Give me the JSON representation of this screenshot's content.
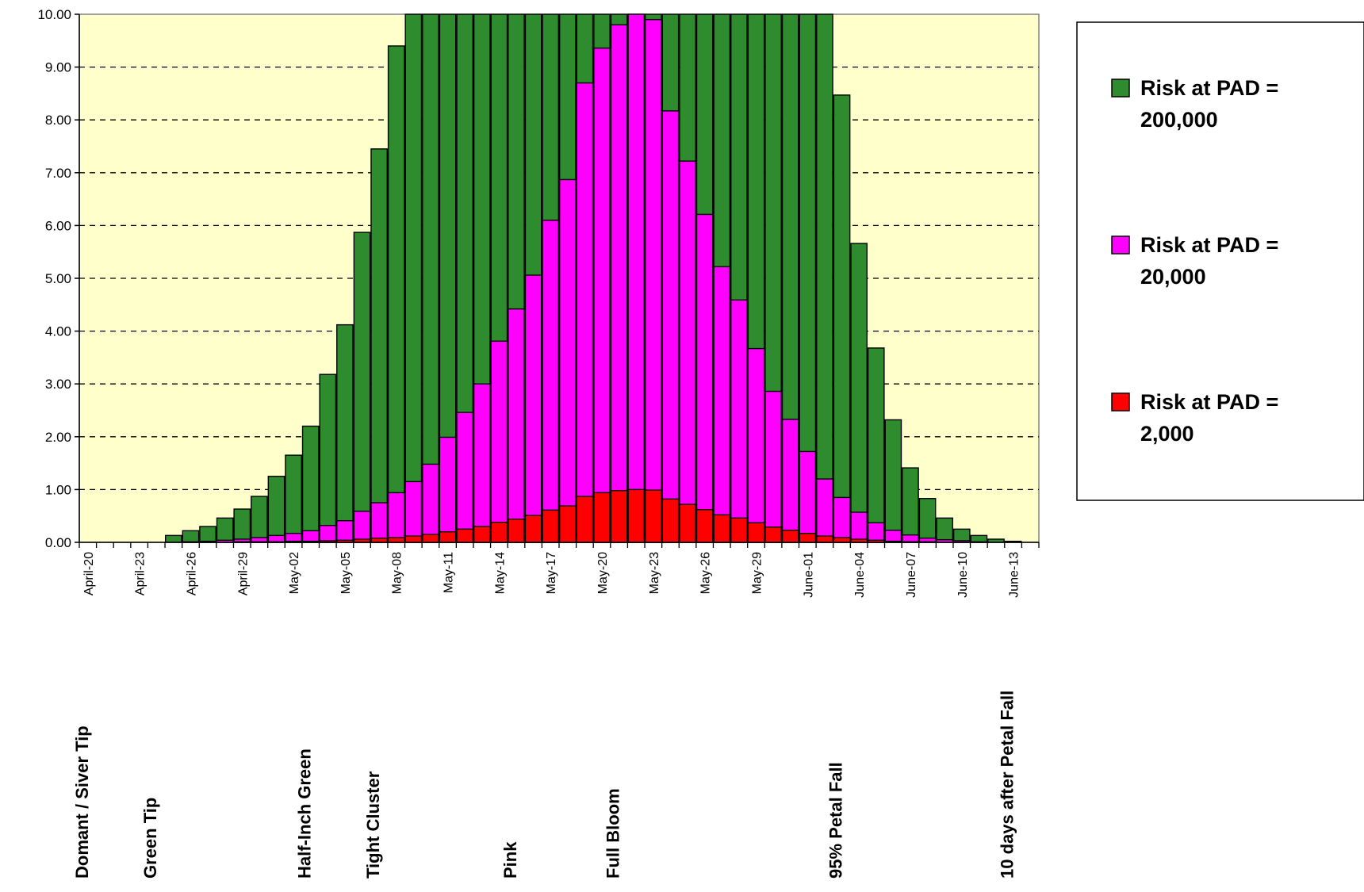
{
  "chart_data": {
    "type": "bar",
    "stacked": false,
    "overlapping": true,
    "categories": [
      "April-20",
      "April-21",
      "April-22",
      "April-23",
      "April-24",
      "April-25",
      "April-26",
      "April-27",
      "April-28",
      "April-29",
      "April-30",
      "May-01",
      "May-02",
      "May-03",
      "May-04",
      "May-05",
      "May-06",
      "May-07",
      "May-08",
      "May-09",
      "May-10",
      "May-11",
      "May-12",
      "May-13",
      "May-14",
      "May-15",
      "May-16",
      "May-17",
      "May-18",
      "May-19",
      "May-20",
      "May-21",
      "May-22",
      "May-23",
      "May-24",
      "May-25",
      "May-26",
      "May-27",
      "May-28",
      "May-29",
      "May-30",
      "May-31",
      "June-01",
      "June-02",
      "June-03",
      "June-04",
      "June-05",
      "June-06",
      "June-07",
      "June-08",
      "June-09",
      "June-10",
      "June-11",
      "June-12",
      "June-13",
      "June-14"
    ],
    "x_tick_labels": [
      "April-20",
      "April-23",
      "April-26",
      "April-29",
      "May-02",
      "May-05",
      "May-08",
      "May-11",
      "May-14",
      "May-17",
      "May-20",
      "May-23",
      "May-26",
      "May-29",
      "June-01",
      "June-04",
      "June-07",
      "June-10",
      "June-13"
    ],
    "x_tick_every": 3,
    "series": [
      {
        "name": "Risk at PAD = 200,000",
        "color": "#2e8b2e",
        "values": [
          0,
          0,
          0,
          0,
          0,
          0.13,
          0.22,
          0.3,
          0.46,
          0.63,
          0.87,
          1.25,
          1.65,
          2.2,
          3.18,
          4.12,
          5.87,
          7.45,
          9.4,
          10,
          10,
          10,
          10,
          10,
          10,
          10,
          10,
          10,
          10,
          10,
          10,
          10,
          10,
          10,
          10,
          10,
          10,
          10,
          10,
          10,
          10,
          10,
          10,
          10,
          8.47,
          5.66,
          3.68,
          2.32,
          1.41,
          0.83,
          0.46,
          0.25,
          0.13,
          0.06,
          0.02,
          0
        ]
      },
      {
        "name": "Risk at PAD = 20,000",
        "color": "#ff00ff",
        "values": [
          0,
          0,
          0,
          0,
          0,
          0,
          0.01,
          0.02,
          0.04,
          0.06,
          0.09,
          0.13,
          0.17,
          0.22,
          0.32,
          0.41,
          0.59,
          0.75,
          0.94,
          1.15,
          1.48,
          1.99,
          2.46,
          3.0,
          3.81,
          4.42,
          5.06,
          6.1,
          6.87,
          8.7,
          9.36,
          9.8,
          10.0,
          9.9,
          8.17,
          7.22,
          6.21,
          5.22,
          4.59,
          3.67,
          2.86,
          2.33,
          1.72,
          1.2,
          0.85,
          0.57,
          0.37,
          0.23,
          0.14,
          0.08,
          0.05,
          0.03,
          0.01,
          0,
          0,
          0
        ]
      },
      {
        "name": "Risk at PAD = 2,000",
        "color": "#ff0000",
        "values": [
          0,
          0,
          0,
          0,
          0,
          0,
          0,
          0,
          0,
          0.01,
          0.01,
          0.01,
          0.02,
          0.02,
          0.03,
          0.04,
          0.06,
          0.08,
          0.09,
          0.12,
          0.15,
          0.2,
          0.25,
          0.3,
          0.38,
          0.44,
          0.51,
          0.61,
          0.69,
          0.87,
          0.94,
          0.98,
          1.0,
          0.99,
          0.82,
          0.72,
          0.62,
          0.52,
          0.46,
          0.37,
          0.29,
          0.23,
          0.17,
          0.12,
          0.09,
          0.06,
          0.04,
          0.02,
          0.01,
          0.01,
          0,
          0,
          0,
          0,
          0,
          0
        ]
      }
    ],
    "y_tick_labels": [
      "0.00",
      "1.00",
      "2.00",
      "3.00",
      "4.00",
      "5.00",
      "6.00",
      "7.00",
      "8.00",
      "9.00",
      "10.00"
    ],
    "ylim": [
      0,
      10
    ],
    "grid": "horizontal dashed",
    "plot_background": "#ffffcc",
    "legend": {
      "position": "right",
      "entries": [
        {
          "line1": "Risk at PAD =",
          "line2": "200,000",
          "color": "#2e8b2e"
        },
        {
          "line1": "Risk at PAD =",
          "line2": "20,000",
          "color": "#ff00ff"
        },
        {
          "line1": "Risk at PAD =",
          "line2": "2,000",
          "color": "#ff0000"
        }
      ]
    },
    "stage_labels": [
      {
        "text": "Domant / Siver Tip",
        "category": "April-20"
      },
      {
        "text": "Green Tip",
        "category": "April-24"
      },
      {
        "text": "Half-Inch Green",
        "category": "May-03"
      },
      {
        "text": "Tight Cluster",
        "category": "May-07"
      },
      {
        "text": "Pink",
        "category": "May-15"
      },
      {
        "text": "Full Bloom",
        "category": "May-21"
      },
      {
        "text": "95% Petal Fall",
        "category": "June-03"
      },
      {
        "text": "10 days after Petal Fall",
        "category": "June-13"
      }
    ],
    "title": "",
    "xlabel": "",
    "ylabel": ""
  }
}
